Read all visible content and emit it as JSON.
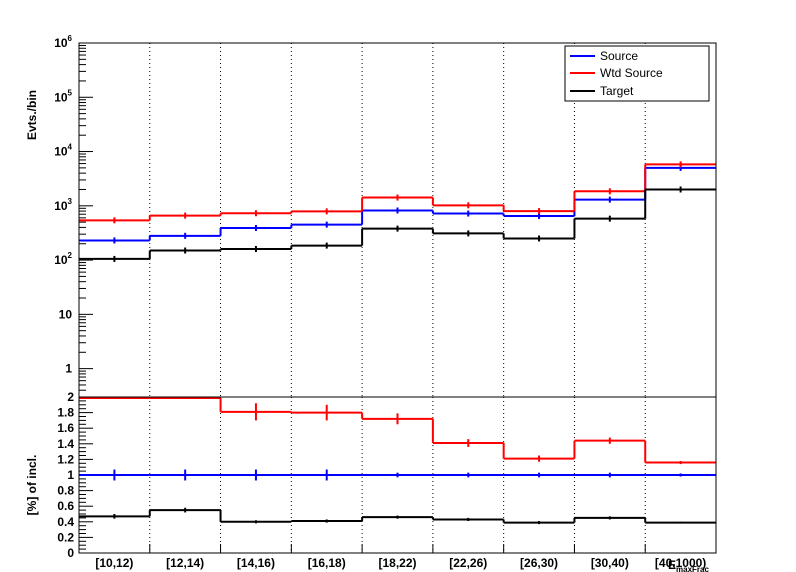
{
  "chart_data": [
    {
      "type": "line",
      "scale": "log",
      "ylabel": "Evts./bin",
      "ylim": [
        0.3,
        1000000
      ],
      "y_ticks": [
        {
          "value": 1,
          "base": "1",
          "exp": ""
        },
        {
          "value": 10,
          "base": "10",
          "exp": ""
        },
        {
          "value": 100,
          "base": "10",
          "exp": "2"
        },
        {
          "value": 1000,
          "base": "10",
          "exp": "3"
        },
        {
          "value": 10000,
          "base": "10",
          "exp": "4"
        },
        {
          "value": 100000,
          "base": "10",
          "exp": "5"
        },
        {
          "value": 1000000,
          "base": "10",
          "exp": "6"
        }
      ],
      "categories": [
        "[10,12)",
        "[12,14)",
        "[14,16)",
        "[16,18)",
        "[18,22)",
        "[22,26)",
        "[26,30)",
        "[30,40)",
        "[40,1000)"
      ],
      "series": [
        {
          "name": "Source",
          "color": "#0000ff",
          "values": [
            230,
            280,
            390,
            450,
            820,
            720,
            650,
            1300,
            5000
          ]
        },
        {
          "name": "Wtd Source",
          "color": "#ff0000",
          "values": [
            540,
            660,
            730,
            790,
            1420,
            1020,
            800,
            1850,
            5800
          ]
        },
        {
          "name": "Target",
          "color": "#000000",
          "values": [
            105,
            150,
            160,
            185,
            380,
            310,
            250,
            580,
            2000
          ]
        }
      ],
      "legend": "top-right",
      "grid": "vertical dotted"
    },
    {
      "type": "line",
      "ylabel": "[%] of incl.",
      "xlabel": "E",
      "xlabel_sub": "maxFrac",
      "ylim": [
        0,
        2
      ],
      "y_ticks": [
        "0",
        "0.2",
        "0.4",
        "0.6",
        "0.8",
        "1",
        "1.2",
        "1.4",
        "1.6",
        "1.8",
        "2"
      ],
      "categories": [
        "[10,12)",
        "[12,14)",
        "[14,16)",
        "[16,18)",
        "[18,22)",
        "[22,26)",
        "[26,30)",
        "[30,40)",
        "[40,1000)"
      ],
      "series": [
        {
          "name": "Source",
          "color": "#0000ff",
          "values": [
            1,
            1,
            1,
            1,
            1,
            1,
            1,
            1,
            1
          ],
          "errors": [
            0.07,
            0.07,
            0.07,
            0.07,
            0.03,
            0.03,
            0.03,
            0.03,
            0.02
          ]
        },
        {
          "name": "Wtd Source",
          "color": "#ff0000",
          "values": [
            2.03,
            2.03,
            1.81,
            1.8,
            1.72,
            1.41,
            1.21,
            1.44,
            1.16
          ],
          "errors": [
            0.0,
            0.0,
            0.11,
            0.1,
            0.07,
            0.05,
            0.04,
            0.04,
            0.02
          ]
        },
        {
          "name": "Target",
          "color": "#000000",
          "values": [
            0.47,
            0.55,
            0.4,
            0.41,
            0.46,
            0.43,
            0.39,
            0.45,
            0.39
          ],
          "errors": [
            0.03,
            0.03,
            0.02,
            0.02,
            0.02,
            0.02,
            0.02,
            0.02,
            0.01
          ]
        }
      ]
    }
  ]
}
